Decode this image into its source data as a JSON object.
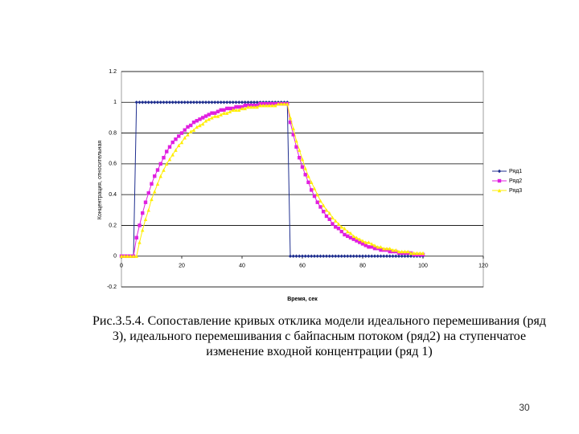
{
  "chart_data": {
    "type": "line",
    "ylabel": "Концентрация, относительная",
    "xlabel": "Время, сек",
    "xlim": [
      0,
      120
    ],
    "xticks": [
      0,
      20,
      40,
      60,
      80,
      100,
      120
    ],
    "ylim": [
      -0.2,
      1.2
    ],
    "yticks": [
      -0.2,
      0,
      0.2,
      0.4,
      0.6,
      0.8,
      1,
      1.2
    ],
    "grid": true,
    "legend": "right",
    "x": [
      0,
      1,
      2,
      3,
      4,
      5,
      6,
      7,
      8,
      9,
      10,
      11,
      12,
      13,
      14,
      15,
      16,
      17,
      18,
      19,
      20,
      21,
      22,
      23,
      24,
      25,
      26,
      27,
      28,
      29,
      30,
      31,
      32,
      33,
      34,
      35,
      36,
      37,
      38,
      39,
      40,
      41,
      42,
      43,
      44,
      45,
      46,
      47,
      48,
      49,
      50,
      51,
      52,
      53,
      54,
      55,
      56,
      57,
      58,
      59,
      60,
      61,
      62,
      63,
      64,
      65,
      66,
      67,
      68,
      69,
      70,
      71,
      72,
      73,
      74,
      75,
      76,
      77,
      78,
      79,
      80,
      81,
      82,
      83,
      84,
      85,
      86,
      87,
      88,
      89,
      90,
      91,
      92,
      93,
      94,
      95,
      96,
      97,
      98,
      99,
      100
    ],
    "series": [
      {
        "name": "Ряд1",
        "color": "#1f2f8f",
        "marker": "diamond",
        "values": [
          0,
          0,
          0,
          0,
          0,
          1,
          1,
          1,
          1,
          1,
          1,
          1,
          1,
          1,
          1,
          1,
          1,
          1,
          1,
          1,
          1,
          1,
          1,
          1,
          1,
          1,
          1,
          1,
          1,
          1,
          1,
          1,
          1,
          1,
          1,
          1,
          1,
          1,
          1,
          1,
          1,
          1,
          1,
          1,
          1,
          1,
          1,
          1,
          1,
          1,
          1,
          1,
          1,
          1,
          1,
          1,
          0,
          0,
          0,
          0,
          0,
          0,
          0,
          0,
          0,
          0,
          0,
          0,
          0,
          0,
          0,
          0,
          0,
          0,
          0,
          0,
          0,
          0,
          0,
          0,
          0,
          0,
          0,
          0,
          0,
          0,
          0,
          0,
          0,
          0,
          0,
          0,
          0,
          0,
          0,
          0,
          0,
          0,
          0,
          0,
          0
        ]
      },
      {
        "name": "Ряд2",
        "color": "#e020e0",
        "marker": "square",
        "values": [
          0,
          0,
          0,
          0,
          0,
          0.12,
          0.2,
          0.28,
          0.35,
          0.41,
          0.47,
          0.52,
          0.56,
          0.6,
          0.64,
          0.68,
          0.71,
          0.74,
          0.76,
          0.78,
          0.8,
          0.82,
          0.84,
          0.85,
          0.87,
          0.88,
          0.89,
          0.9,
          0.91,
          0.92,
          0.93,
          0.93,
          0.94,
          0.95,
          0.95,
          0.96,
          0.96,
          0.96,
          0.97,
          0.97,
          0.97,
          0.98,
          0.98,
          0.98,
          0.98,
          0.98,
          0.99,
          0.99,
          0.99,
          0.99,
          0.99,
          0.99,
          0.99,
          0.99,
          0.99,
          0.99,
          0.87,
          0.79,
          0.71,
          0.64,
          0.58,
          0.53,
          0.48,
          0.43,
          0.39,
          0.35,
          0.32,
          0.29,
          0.26,
          0.24,
          0.21,
          0.19,
          0.18,
          0.16,
          0.14,
          0.13,
          0.12,
          0.11,
          0.1,
          0.09,
          0.08,
          0.07,
          0.06,
          0.06,
          0.05,
          0.05,
          0.04,
          0.04,
          0.04,
          0.03,
          0.03,
          0.03,
          0.02,
          0.02,
          0.02,
          0.02,
          0.02,
          0.01,
          0.01,
          0.01,
          0.01
        ]
      },
      {
        "name": "Ряд3",
        "color": "#ffee00",
        "marker": "triangle",
        "values": [
          0,
          0,
          0,
          0,
          0,
          0,
          0.09,
          0.17,
          0.24,
          0.3,
          0.37,
          0.42,
          0.47,
          0.52,
          0.56,
          0.6,
          0.63,
          0.66,
          0.69,
          0.72,
          0.74,
          0.77,
          0.79,
          0.81,
          0.82,
          0.84,
          0.85,
          0.86,
          0.88,
          0.89,
          0.9,
          0.91,
          0.91,
          0.92,
          0.93,
          0.93,
          0.94,
          0.95,
          0.95,
          0.95,
          0.96,
          0.96,
          0.97,
          0.97,
          0.97,
          0.97,
          0.98,
          0.98,
          0.98,
          0.98,
          0.98,
          0.98,
          0.99,
          0.99,
          0.99,
          0.99,
          0.9,
          0.83,
          0.75,
          0.69,
          0.63,
          0.57,
          0.52,
          0.48,
          0.44,
          0.4,
          0.36,
          0.33,
          0.3,
          0.28,
          0.25,
          0.23,
          0.21,
          0.19,
          0.18,
          0.16,
          0.15,
          0.13,
          0.12,
          0.11,
          0.1,
          0.09,
          0.09,
          0.08,
          0.07,
          0.06,
          0.06,
          0.05,
          0.05,
          0.05,
          0.04,
          0.04,
          0.03,
          0.03,
          0.03,
          0.03,
          0.02,
          0.02,
          0.02,
          0.02,
          0.02
        ]
      }
    ]
  },
  "caption": [
    "Рис.3.5.4. Сопоставление кривых отклика модели идеального перемешивания (ряд",
    "3), идеального перемешивания с байпасным потоком (ряд2) на ступенчатое",
    "изменение входной концентрации (ряд 1)"
  ],
  "page_number": "30"
}
